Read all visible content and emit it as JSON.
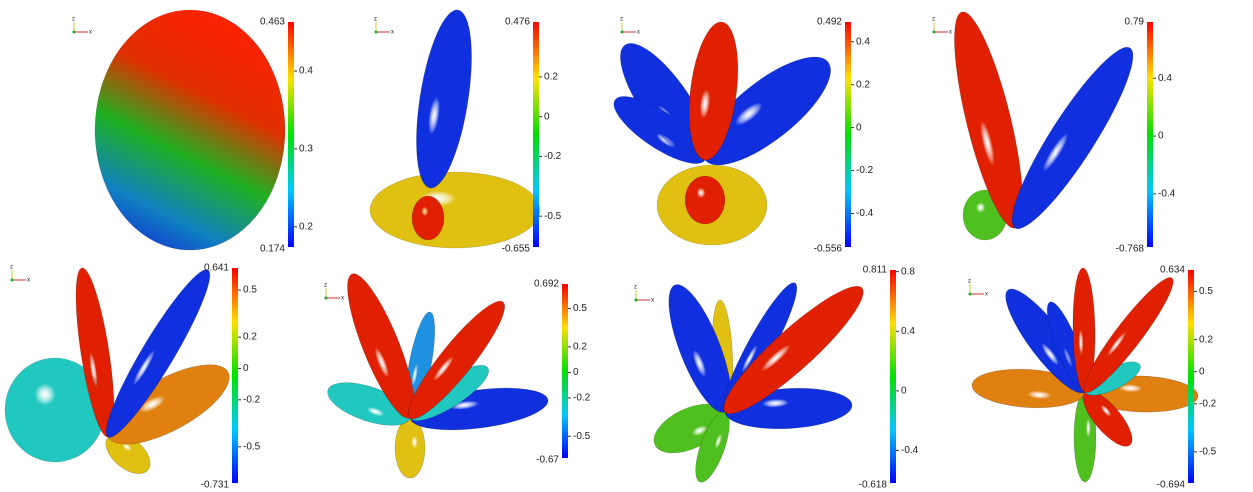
{
  "triad": {
    "vertical": "z",
    "horizontal": "x"
  },
  "panels": [
    {
      "colorbar": {
        "max": 0.463,
        "min": 0.174,
        "ticks": [
          0.4,
          0.3,
          0.2
        ]
      }
    },
    {
      "colorbar": {
        "max": 0.476,
        "min": -0.655,
        "ticks": [
          0.2,
          0,
          -0.2,
          -0.5
        ]
      }
    },
    {
      "colorbar": {
        "max": 0.492,
        "min": -0.556,
        "ticks": [
          0.4,
          0.2,
          0,
          -0.2,
          -0.4
        ]
      }
    },
    {
      "colorbar": {
        "max": 0.79,
        "min": -0.768,
        "ticks": [
          0.4,
          0,
          -0.4
        ]
      }
    },
    {
      "colorbar": {
        "max": 0.641,
        "min": -0.731,
        "ticks": [
          0.5,
          0.2,
          0,
          -0.2,
          -0.5
        ]
      }
    },
    {
      "colorbar": {
        "max": 0.692,
        "min": -0.67,
        "ticks": [
          0.5,
          0.2,
          0,
          -0.2,
          -0.5
        ]
      }
    },
    {
      "colorbar": {
        "max": 0.811,
        "min": -0.618,
        "ticks": [
          0.8,
          0.4,
          0,
          -0.4
        ]
      }
    },
    {
      "colorbar": {
        "max": 0.634,
        "min": -0.694,
        "ticks": [
          0.5,
          0.2,
          0,
          -0.2,
          -0.5
        ]
      }
    }
  ]
}
